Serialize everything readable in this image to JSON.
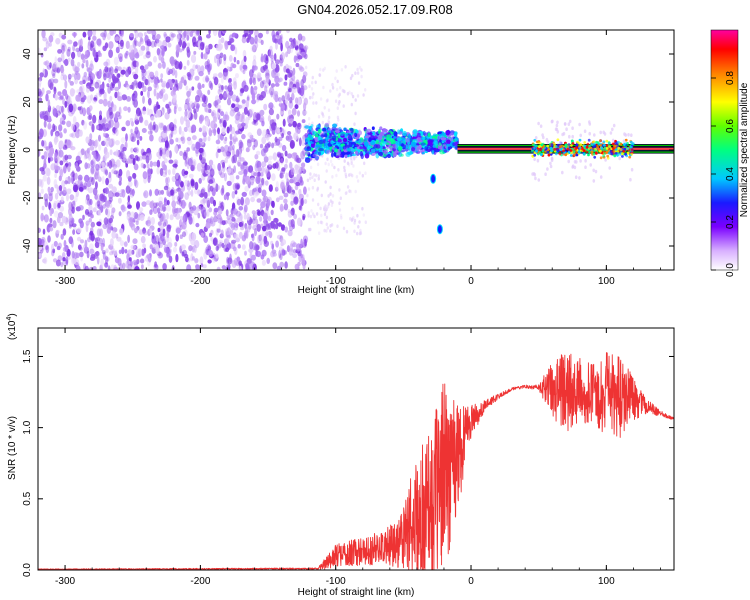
{
  "title": "GN04.2026.052.17.09.R08",
  "colorbar": {
    "label": "Normalized spectral amplitude",
    "ticks": [
      "0.0",
      "0.2",
      "0.4",
      "0.6",
      "0.8"
    ],
    "tick_values": [
      0.0,
      0.2,
      0.4,
      0.6,
      0.8
    ],
    "range": [
      0,
      1
    ],
    "colormap": "rainbow (white-violet-blue-cyan-green-yellow-red-magenta)"
  },
  "chart_data": [
    {
      "type": "heatmap",
      "xlabel": "Height of straight line (km)",
      "ylabel": "Frequency (Hz)",
      "xlim": [
        -320,
        150
      ],
      "ylim": [
        -50,
        50
      ],
      "xticks": [
        -300,
        -200,
        -100,
        0,
        100
      ],
      "yticks": [
        -40,
        -20,
        0,
        20,
        40
      ],
      "xtick_labels": [
        "-300",
        "-200",
        "-100",
        "0",
        "100"
      ],
      "ytick_labels": [
        "-40",
        "-20",
        "0",
        "20",
        "40"
      ],
      "regions": [
        {
          "x_range": [
            -320,
            -122
          ],
          "freq_range": [
            -50,
            50
          ],
          "amplitude": "low (0.0-0.2), noise"
        },
        {
          "x_range": [
            -122,
            -10
          ],
          "freq_center": 3,
          "freq_width": 8,
          "amplitude": "0.2-0.5"
        },
        {
          "x_range": [
            -10,
            150
          ],
          "freq_center": 0.5,
          "freq_width": 2,
          "amplitude": "0.9-1.0"
        }
      ],
      "notable_points": [
        {
          "x": -28,
          "freq": -12
        },
        {
          "x": -23,
          "freq": -33
        }
      ],
      "colors": {
        "line": "#ff3b4a",
        "band_edge": "#00c000"
      }
    },
    {
      "type": "line",
      "xlabel": "Height of straight line (km)",
      "ylabel": "SNR (10 * v/v)",
      "y_scale_label": "(x10",
      "y_scale_exp": "4",
      "y_scale_suffix": ")",
      "xlim": [
        -320,
        150
      ],
      "ylim": [
        0,
        1.7
      ],
      "xticks": [
        -300,
        -200,
        -100,
        0,
        100
      ],
      "yticks": [
        0.0,
        0.5,
        1.0,
        1.5
      ],
      "xtick_labels": [
        "-300",
        "-200",
        "-100",
        "0",
        "100"
      ],
      "ytick_labels": [
        "0.0",
        "0.5",
        "1.0",
        "1.5"
      ],
      "series": [
        {
          "color": "#ee3333",
          "envelope_x": [
            -320,
            -113,
            -110,
            -100,
            -90,
            -80,
            -70,
            -60,
            -50,
            -45,
            -40,
            -35,
            -30,
            -25,
            -20,
            -15,
            -10,
            -5,
            0,
            10,
            20,
            30,
            40,
            50,
            60,
            70,
            80,
            90,
            100,
            110,
            120,
            130,
            140,
            150
          ],
          "envelope_mid": [
            0.005,
            0.01,
            0.03,
            0.1,
            0.12,
            0.13,
            0.15,
            0.17,
            0.22,
            0.3,
            0.35,
            0.4,
            0.45,
            0.55,
            0.7,
            0.75,
            0.8,
            0.95,
            1.05,
            1.15,
            1.22,
            1.27,
            1.29,
            1.28,
            1.27,
            1.26,
            1.24,
            1.24,
            1.23,
            1.22,
            1.2,
            1.15,
            1.1,
            1.06
          ],
          "envelope_amp": [
            0.003,
            0.005,
            0.03,
            0.08,
            0.09,
            0.1,
            0.12,
            0.14,
            0.22,
            0.35,
            0.45,
            0.5,
            0.55,
            0.6,
            0.65,
            0.6,
            0.45,
            0.25,
            0.12,
            0.04,
            0.02,
            0.01,
            0.01,
            0.02,
            0.2,
            0.3,
            0.25,
            0.2,
            0.3,
            0.3,
            0.15,
            0.05,
            0.02,
            0.01
          ]
        }
      ]
    }
  ]
}
